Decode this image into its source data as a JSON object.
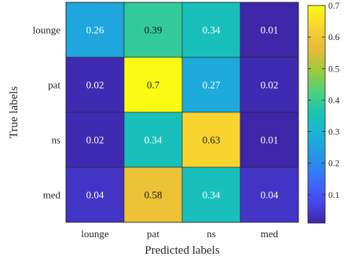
{
  "chart_data": {
    "type": "heatmap",
    "title": "",
    "xlabel": "Predicted labels",
    "ylabel": "True labels",
    "x_categories": [
      "lounge",
      "pat",
      "ns",
      "med"
    ],
    "y_categories": [
      "lounge",
      "pat",
      "ns",
      "med"
    ],
    "values": [
      [
        0.26,
        0.39,
        0.34,
        0.01
      ],
      [
        0.02,
        0.7,
        0.27,
        0.02
      ],
      [
        0.02,
        0.34,
        0.63,
        0.01
      ],
      [
        0.04,
        0.58,
        0.34,
        0.04
      ]
    ],
    "colorbar": {
      "range": [
        0.01,
        0.7
      ],
      "ticks": [
        0.1,
        0.2,
        0.3,
        0.4,
        0.5,
        0.6,
        0.7
      ],
      "colormap": "parula"
    },
    "grid": true
  }
}
